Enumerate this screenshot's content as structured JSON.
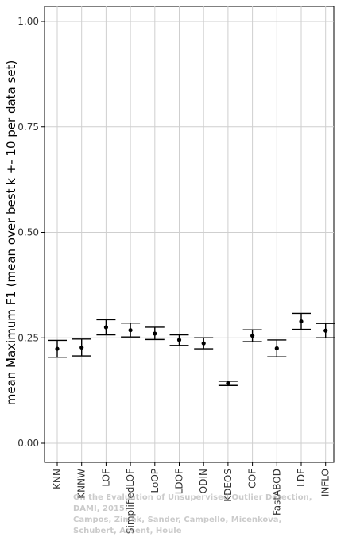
{
  "chart_data": {
    "type": "scatter",
    "title": "",
    "xlabel": "",
    "ylabel": "mean Maximum F1 (mean over best k +- 10 per data set)",
    "ylim": [
      0,
      1.04
    ],
    "yticks": [
      "0.00",
      "0.25",
      "0.50",
      "0.75",
      "1.00"
    ],
    "ytick_values": [
      0,
      0.25,
      0.5,
      0.75,
      1.0
    ],
    "grid": true,
    "categories": [
      "KNN",
      "KNNW",
      "LOF",
      "SimplifiedLOF",
      "LoOP",
      "LDOF",
      "ODIN",
      "KDEOS",
      "COF",
      "FastABOD",
      "LDF",
      "INFLO"
    ],
    "series": [
      {
        "mean": [
          0.224,
          0.227,
          0.275,
          0.268,
          0.26,
          0.245,
          0.237,
          0.142,
          0.255,
          0.225,
          0.289,
          0.267
        ],
        "lower": [
          0.204,
          0.207,
          0.257,
          0.252,
          0.246,
          0.232,
          0.224,
          0.137,
          0.241,
          0.205,
          0.27,
          0.25
        ],
        "upper": [
          0.244,
          0.247,
          0.293,
          0.285,
          0.275,
          0.257,
          0.25,
          0.147,
          0.269,
          0.245,
          0.308,
          0.284
        ]
      }
    ]
  },
  "watermark": {
    "line1": "On the Evaluation of Unsupervised Outlier Detection, DAMI, 2015.",
    "line2": "Campos, Zimek, Sander, Campello, Micenkova, Schubert, Assent, Houle"
  }
}
